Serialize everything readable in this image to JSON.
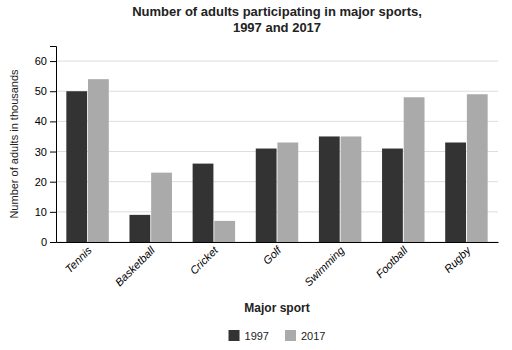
{
  "chart_data": {
    "type": "bar",
    "title": "Number of adults participating in major sports,\n1997 and 2017",
    "categories": [
      "Tennis",
      "Basketball",
      "Cricket",
      "Golf",
      "Swimming",
      "Football",
      "Rugby"
    ],
    "series": [
      {
        "name": "1997",
        "color": "#333333",
        "values": [
          50,
          9,
          26,
          31,
          35,
          31,
          33
        ]
      },
      {
        "name": "2017",
        "color": "#aaaaaa",
        "values": [
          54,
          23,
          7,
          33,
          35,
          48,
          49
        ]
      }
    ],
    "xlabel": "Major sport",
    "ylabel": "Number of adults in thousands",
    "ylim": [
      0,
      65
    ],
    "yticks": [
      0,
      10,
      20,
      30,
      40,
      50,
      60
    ],
    "grid": true,
    "legend": "bottom"
  }
}
